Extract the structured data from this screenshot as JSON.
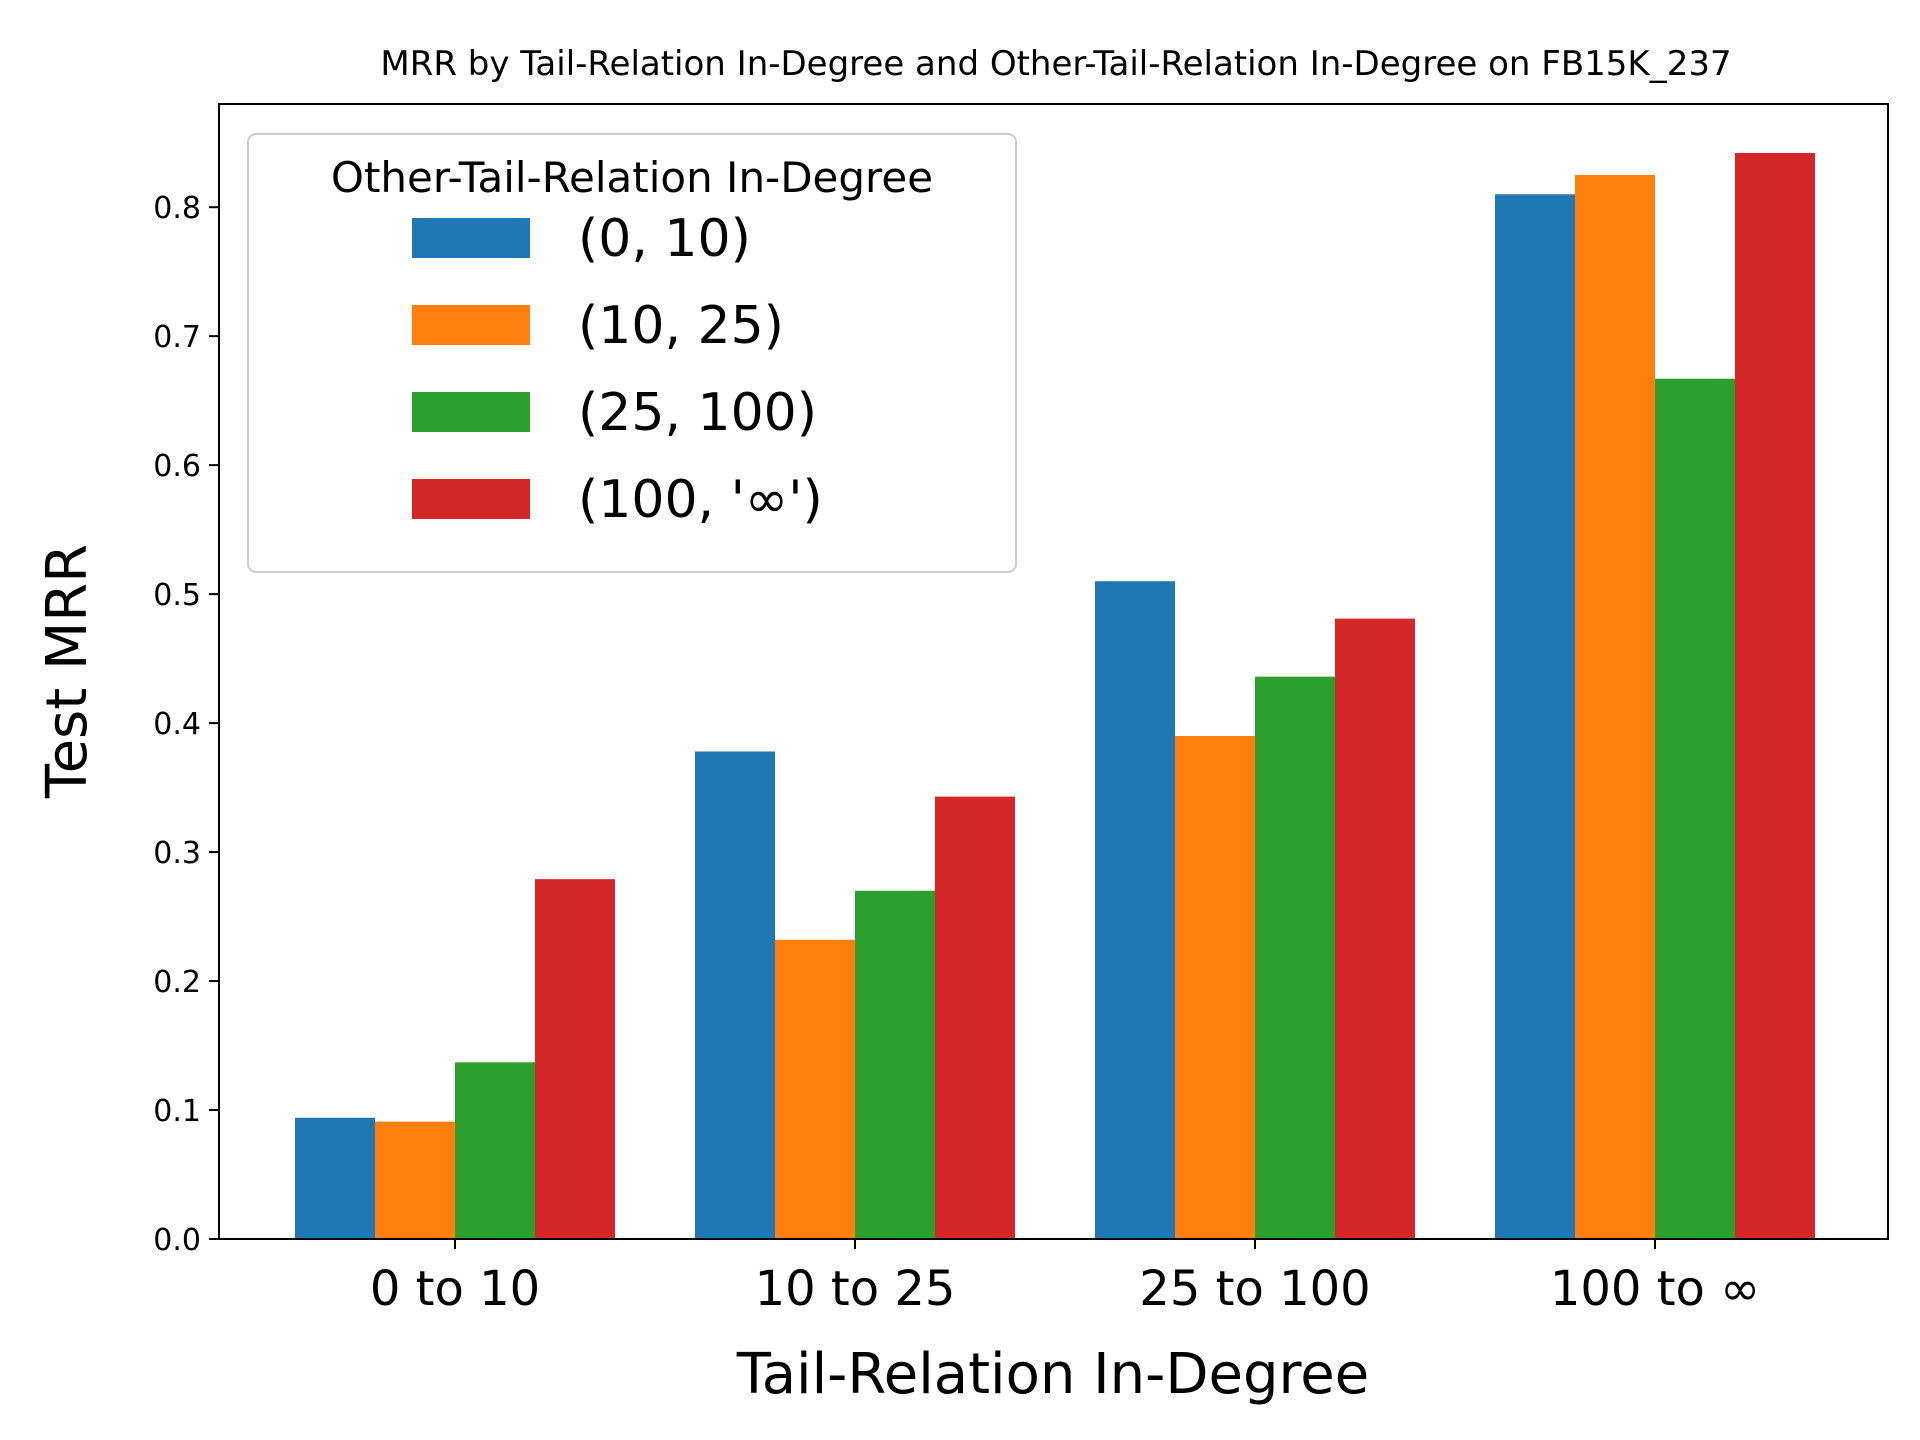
{
  "chart_data": {
    "type": "bar",
    "title": "MRR by Tail-Relation In-Degree and Other-Tail-Relation In-Degree on FB15K_237",
    "xlabel": "Tail-Relation In-Degree",
    "ylabel": "Test MRR",
    "categories": [
      "0 to 10",
      "10 to 25",
      "25 to 100",
      "100 to ∞"
    ],
    "ylim": [
      0,
      0.88
    ],
    "yticks": [
      "0.0",
      "0.1",
      "0.2",
      "0.3",
      "0.4",
      "0.5",
      "0.6",
      "0.7",
      "0.8"
    ],
    "grid": false,
    "legend": {
      "title": "Other-Tail-Relation In-Degree",
      "position": "top-left"
    },
    "series": [
      {
        "name": "(0, 10)",
        "color": "#1f77b4",
        "values": [
          0.094,
          0.378,
          0.51,
          0.81
        ]
      },
      {
        "name": "(10, 25)",
        "color": "#ff7f0e",
        "values": [
          0.091,
          0.232,
          0.39,
          0.825
        ]
      },
      {
        "name": "(25, 100)",
        "color": "#2ca02c",
        "values": [
          0.137,
          0.27,
          0.436,
          0.667
        ]
      },
      {
        "name": "(100, '∞')",
        "color": "#d62728",
        "values": [
          0.279,
          0.343,
          0.481,
          0.842
        ]
      }
    ]
  }
}
